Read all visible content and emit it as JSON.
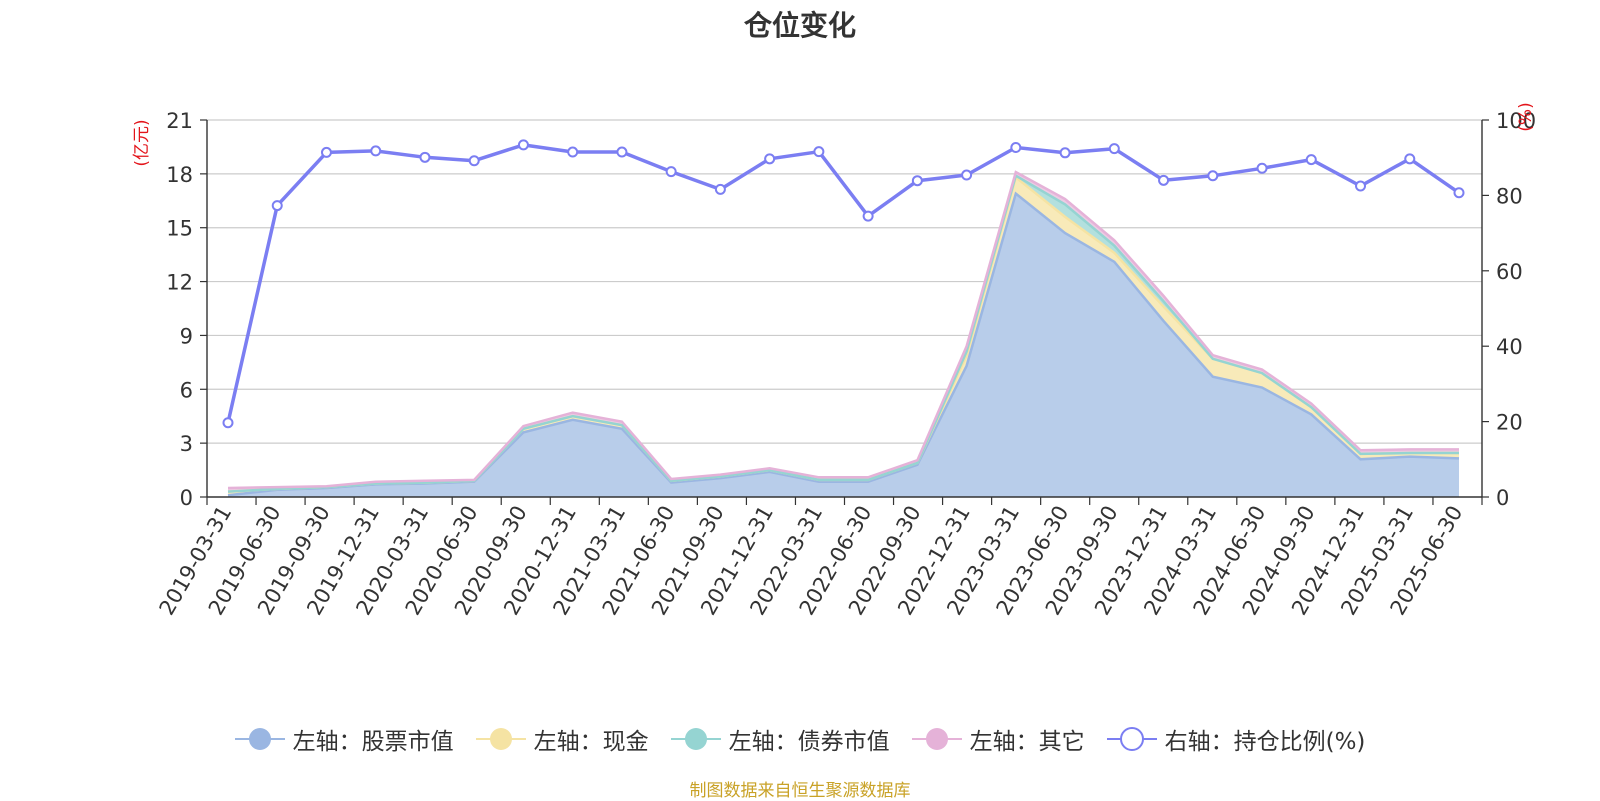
{
  "chart_data": {
    "type": "area",
    "title": "仓位变化",
    "categories": [
      "2019-03-31",
      "2019-06-30",
      "2019-09-30",
      "2019-12-31",
      "2020-03-31",
      "2020-06-30",
      "2020-09-30",
      "2020-12-31",
      "2021-03-31",
      "2021-06-30",
      "2021-09-30",
      "2021-12-31",
      "2022-03-31",
      "2022-06-30",
      "2022-09-30",
      "2022-12-31",
      "2023-03-31",
      "2023-06-30",
      "2023-09-30",
      "2023-12-31",
      "2024-03-31",
      "2024-06-30",
      "2024-09-30",
      "2024-12-31",
      "2025-03-31",
      "2025-06-30"
    ],
    "left_axis": {
      "unit": "(亿元)",
      "ylim": [
        0,
        21
      ],
      "ticks": [
        0,
        3,
        6,
        9,
        12,
        15,
        18,
        21
      ]
    },
    "right_axis": {
      "unit": "(%)",
      "ylim": [
        0,
        100
      ],
      "ticks": [
        0,
        20,
        40,
        60,
        80,
        100
      ]
    },
    "series": [
      {
        "name": "左轴：股票市值",
        "axis": "left",
        "kind": "area",
        "color": "#9ab6e2",
        "fill": "#b8cdea",
        "values": [
          0.1,
          0.4,
          0.5,
          0.7,
          0.75,
          0.85,
          3.6,
          4.3,
          3.8,
          0.8,
          1.05,
          1.4,
          0.85,
          0.85,
          1.8,
          7.3,
          16.9,
          14.7,
          13.1,
          9.8,
          6.7,
          6.1,
          4.6,
          2.1,
          2.25,
          2.15
        ]
      },
      {
        "name": "左轴：现金",
        "axis": "left",
        "kind": "area",
        "color": "#f5e3a3",
        "fill": "#f8eab9",
        "values": [
          0.2,
          0.05,
          0.05,
          0.05,
          0.05,
          0.05,
          0.2,
          0.2,
          0.2,
          0.1,
          0.1,
          0.1,
          0.1,
          0.1,
          0.1,
          0.6,
          0.9,
          0.9,
          0.5,
          0.8,
          1.0,
          0.8,
          0.4,
          0.3,
          0.2,
          0.3
        ]
      },
      {
        "name": "左轴：债券市值",
        "axis": "left",
        "kind": "area",
        "color": "#95d4d2",
        "fill": "#b3e0de",
        "values": [
          0,
          0,
          0,
          0,
          0,
          0,
          0,
          0,
          0,
          0,
          0,
          0,
          0,
          0,
          0,
          0.2,
          0.1,
          0.7,
          0.4,
          0.3,
          0,
          0,
          0,
          0,
          0,
          0
        ]
      },
      {
        "name": "左轴：其它",
        "axis": "left",
        "kind": "area",
        "color": "#e5b2d8",
        "fill": "#eccbe3",
        "values": [
          0.2,
          0.1,
          0.05,
          0.1,
          0.1,
          0.05,
          0.15,
          0.2,
          0.2,
          0.1,
          0.1,
          0.1,
          0.15,
          0.15,
          0.15,
          0.3,
          0.2,
          0.3,
          0.3,
          0.3,
          0.2,
          0.2,
          0.2,
          0.2,
          0.2,
          0.2
        ]
      },
      {
        "name": "右轴：持仓比例(%)",
        "axis": "right",
        "kind": "line",
        "color": "#7b7ef2",
        "values": [
          19.7,
          77.3,
          91.4,
          91.8,
          90.1,
          89.2,
          93.4,
          91.5,
          91.5,
          86.3,
          81.6,
          89.7,
          91.6,
          74.5,
          83.9,
          85.4,
          92.7,
          91.3,
          92.4,
          84.0,
          85.2,
          87.2,
          89.5,
          82.5,
          89.7,
          80.7
        ]
      }
    ],
    "legend_position": "bottom",
    "grid": true
  },
  "source_note": "制图数据来自恒生聚源数据库"
}
